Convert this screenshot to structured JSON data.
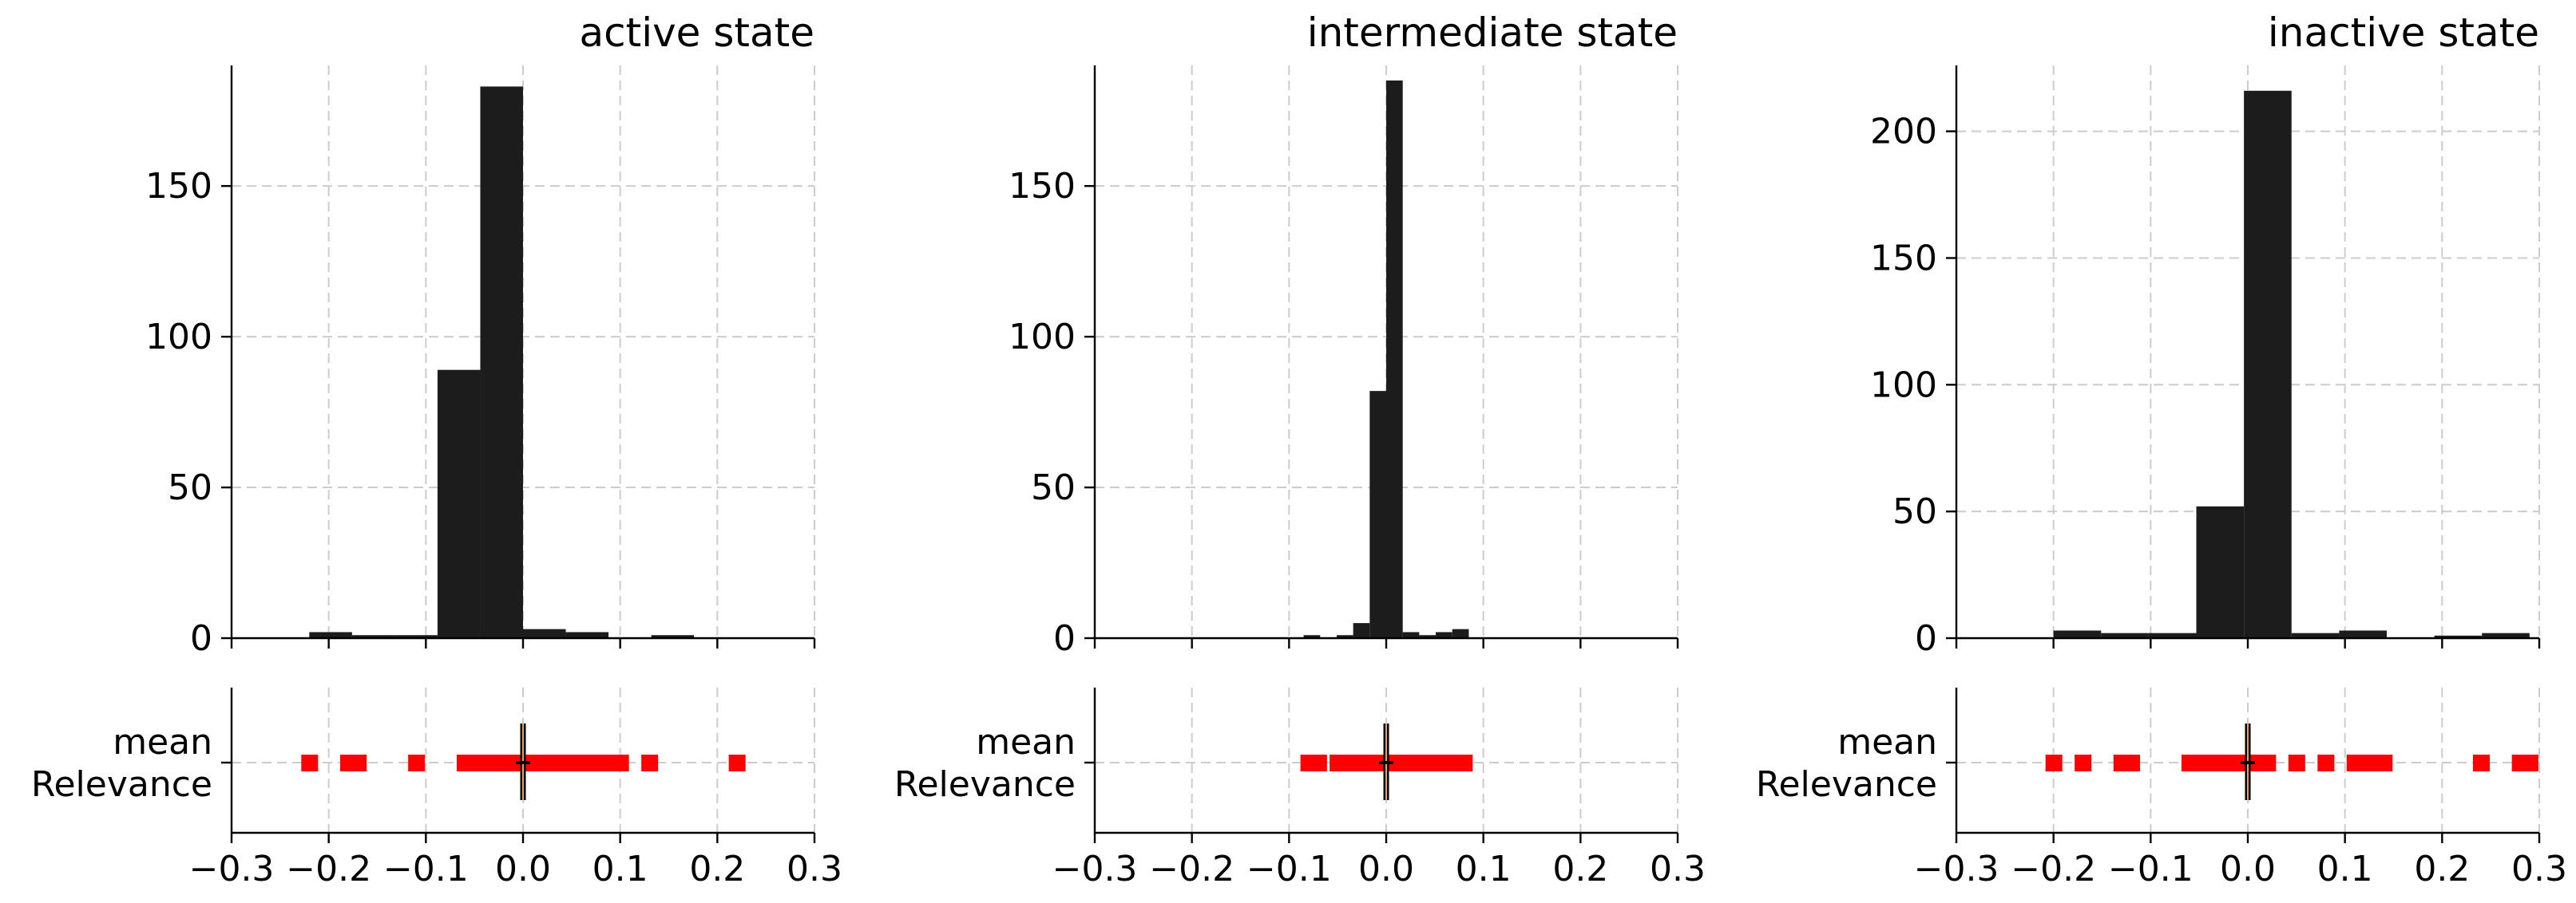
{
  "colors": {
    "bars": "#1c1c1c",
    "points": "#ff0000",
    "mean_line": "#000000",
    "mean_line_core": "#e8a060",
    "grid": "#cccccc"
  },
  "chart_data": [
    {
      "type": "bar",
      "title": "active state",
      "hist": {
        "bin_edges": [
          -0.22,
          -0.176,
          -0.132,
          -0.088,
          -0.044,
          0.0,
          0.044,
          0.088,
          0.132,
          0.176,
          0.22
        ],
        "counts": [
          2,
          1,
          1,
          89,
          183,
          3,
          2,
          0,
          1,
          0
        ],
        "xlim": [
          -0.3,
          0.3
        ],
        "ylim": [
          0,
          190
        ],
        "yticks": [
          0,
          50,
          100,
          150
        ],
        "ytick_labels": [
          "0",
          "50",
          "100",
          "150"
        ],
        "grid": true
      },
      "strip": {
        "type": "scatter",
        "ytick_labels": [
          "mean",
          "Relevance"
        ],
        "xlim": [
          -0.3,
          0.3
        ],
        "xticks": [
          -0.3,
          -0.2,
          -0.1,
          0.0,
          0.1,
          0.2,
          0.3
        ],
        "xtick_labels": [
          "−0.3",
          "−0.2",
          "−0.1",
          "0.0",
          "0.1",
          "0.2",
          "0.3"
        ],
        "points": [
          -0.22,
          -0.18,
          -0.17,
          -0.11,
          -0.06,
          -0.05,
          -0.04,
          -0.03,
          -0.02,
          -0.01,
          0.0,
          0.01,
          0.02,
          0.03,
          0.04,
          0.05,
          0.06,
          0.07,
          0.08,
          0.09,
          0.1,
          0.13,
          0.22
        ],
        "mean": 0.0
      }
    },
    {
      "type": "bar",
      "title": "intermediate state",
      "hist": {
        "bin_edges": [
          -0.085,
          -0.068,
          -0.051,
          -0.034,
          -0.017,
          0.0,
          0.017,
          0.034,
          0.051,
          0.068,
          0.085
        ],
        "counts": [
          1,
          0,
          1,
          5,
          82,
          185,
          2,
          1,
          2,
          3
        ],
        "xlim": [
          -0.3,
          0.3
        ],
        "ylim": [
          0,
          190
        ],
        "yticks": [
          0,
          50,
          100,
          150
        ],
        "ytick_labels": [
          "0",
          "50",
          "100",
          "150"
        ],
        "grid": true
      },
      "strip": {
        "type": "scatter",
        "ytick_labels": [
          "mean",
          "Relevance"
        ],
        "xlim": [
          -0.3,
          0.3
        ],
        "xticks": [
          -0.3,
          -0.2,
          -0.1,
          0.0,
          0.1,
          0.2,
          0.3
        ],
        "xtick_labels": [
          "−0.3",
          "−0.2",
          "−0.1",
          "0.0",
          "0.1",
          "0.2",
          "0.3"
        ],
        "points": [
          -0.08,
          -0.07,
          -0.05,
          -0.04,
          -0.03,
          -0.02,
          -0.01,
          0.0,
          0.01,
          0.02,
          0.03,
          0.04,
          0.05,
          0.06,
          0.07,
          0.08
        ],
        "mean": 0.0
      }
    },
    {
      "type": "bar",
      "title": "inactive state",
      "hist": {
        "bin_edges": [
          -0.2,
          -0.151,
          -0.102,
          -0.053,
          -0.004,
          0.045,
          0.094,
          0.143,
          0.192,
          0.241,
          0.29
        ],
        "counts": [
          3,
          2,
          2,
          52,
          216,
          2,
          3,
          0,
          1,
          2
        ],
        "xlim": [
          -0.3,
          0.3
        ],
        "ylim": [
          0,
          226
        ],
        "yticks": [
          0,
          50,
          100,
          150,
          200
        ],
        "ytick_labels": [
          "0",
          "50",
          "100",
          "150",
          "200"
        ],
        "grid": true
      },
      "strip": {
        "type": "scatter",
        "ytick_labels": [
          "mean",
          "Relevance"
        ],
        "xlim": [
          -0.3,
          0.3
        ],
        "xticks": [
          -0.3,
          -0.2,
          -0.1,
          0.0,
          0.1,
          0.2,
          0.3
        ],
        "xtick_labels": [
          "−0.3",
          "−0.2",
          "−0.1",
          "0.0",
          "0.1",
          "0.2",
          "0.3"
        ],
        "points": [
          -0.2,
          -0.17,
          -0.13,
          -0.12,
          -0.06,
          -0.05,
          -0.04,
          -0.03,
          -0.02,
          -0.01,
          0.0,
          0.01,
          0.02,
          0.05,
          0.08,
          0.11,
          0.12,
          0.13,
          0.14,
          0.24,
          0.28,
          0.29
        ],
        "mean": 0.0
      }
    }
  ]
}
